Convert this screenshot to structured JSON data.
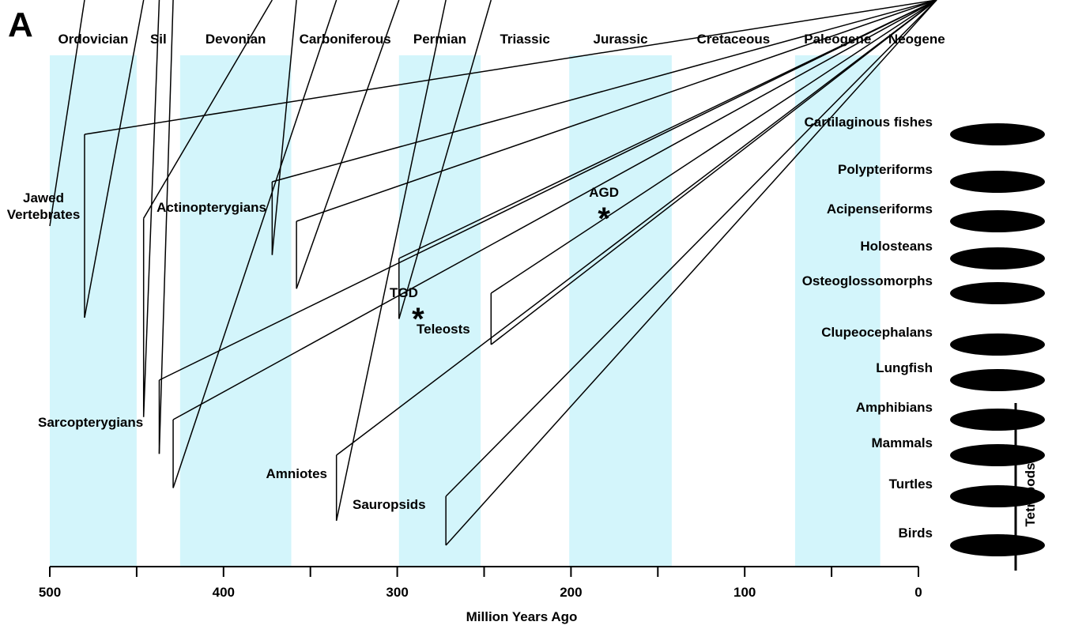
{
  "panel_label": "A",
  "periods": [
    {
      "name": "Ordovician",
      "start": 500,
      "end": 450,
      "shaded": true
    },
    {
      "name": "Sil",
      "start": 450,
      "end": 425,
      "shaded": false
    },
    {
      "name": "Devonian",
      "start": 425,
      "end": 361,
      "shaded": true
    },
    {
      "name": "Carboniferous",
      "start": 361,
      "end": 299,
      "shaded": false
    },
    {
      "name": "Permian",
      "start": 299,
      "end": 252,
      "shaded": true
    },
    {
      "name": "Triassic",
      "start": 252,
      "end": 201,
      "shaded": false
    },
    {
      "name": "Jurassic",
      "start": 201,
      "end": 142,
      "shaded": true
    },
    {
      "name": "Cretaceous",
      "start": 142,
      "end": 71,
      "shaded": false
    },
    {
      "name": "Paleogene",
      "start": 71,
      "end": 22,
      "shaded": true
    },
    {
      "name": "Neogene",
      "start": 22,
      "end": 0,
      "shaded": false
    }
  ],
  "axis": {
    "label": "Million Years Ago",
    "lim": [
      500,
      0
    ],
    "ticks": [
      500,
      400,
      300,
      200,
      100,
      0
    ],
    "minor_ticks": [
      450,
      350,
      250,
      150,
      50
    ]
  },
  "tree": {
    "label": "Jawed Vertebrates",
    "age": 480,
    "children": [
      {
        "label": "Cartilaginous fishes"
      },
      {
        "age": 446,
        "children": [
          {
            "label": "Actinopterygians",
            "age": 372,
            "children": [
              {
                "label": "Polypteriforms"
              },
              {
                "age": 358,
                "children": [
                  {
                    "label": "Acipenseriforms"
                  },
                  {
                    "age": 299,
                    "children": [
                      {
                        "label": "Holosteans"
                      },
                      {
                        "label": "Teleosts",
                        "age": 246,
                        "children": [
                          {
                            "label": "Osteoglossomorphs"
                          },
                          {
                            "label": "Clupeocephalans"
                          }
                        ]
                      }
                    ]
                  }
                ]
              }
            ]
          },
          {
            "label": "Sarcopterygians",
            "age": 437,
            "children": [
              {
                "label": "Lungfish"
              },
              {
                "age": 429,
                "children": [
                  {
                    "label": "Amphibians"
                  },
                  {
                    "label": "Amniotes",
                    "age": 335,
                    "children": [
                      {
                        "label": "Mammals"
                      },
                      {
                        "label": "Sauropsids",
                        "age": 272,
                        "children": [
                          {
                            "label": "Turtles"
                          },
                          {
                            "label": "Birds"
                          }
                        ]
                      }
                    ]
                  }
                ]
              }
            ]
          }
        ]
      }
    ]
  },
  "events": [
    {
      "label": "TGD",
      "age": 288
    },
    {
      "label": "AGD",
      "age": 181
    }
  ],
  "bracket_label": "Tetrapods"
}
